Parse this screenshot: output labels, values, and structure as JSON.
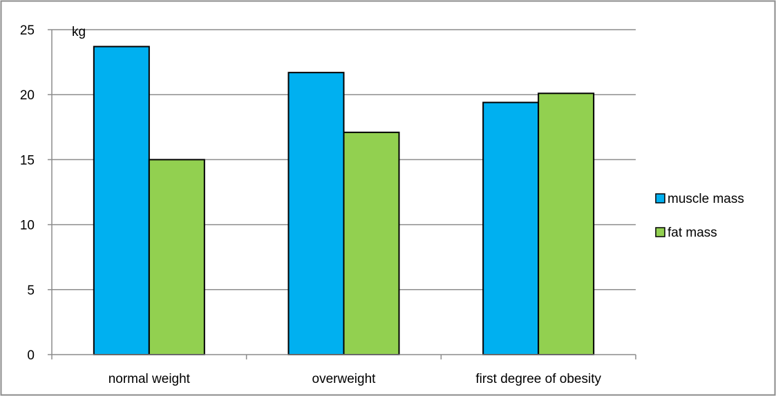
{
  "chart_data": {
    "type": "bar",
    "title": "",
    "xlabel": "",
    "ylabel": "",
    "unit_label": "kg",
    "categories": [
      "normal weight",
      "overweight",
      "first degree of obesity"
    ],
    "series": [
      {
        "name": "muscle mass",
        "values": [
          23.7,
          21.7,
          19.4
        ],
        "color": "#00b0f0"
      },
      {
        "name": "fat mass",
        "values": [
          15.0,
          17.1,
          20.1
        ],
        "color": "#92d050"
      }
    ],
    "ylim": [
      0,
      25
    ],
    "yticks": [
      0,
      5,
      10,
      15,
      20,
      25
    ],
    "grid": true,
    "legend_position": "right"
  }
}
